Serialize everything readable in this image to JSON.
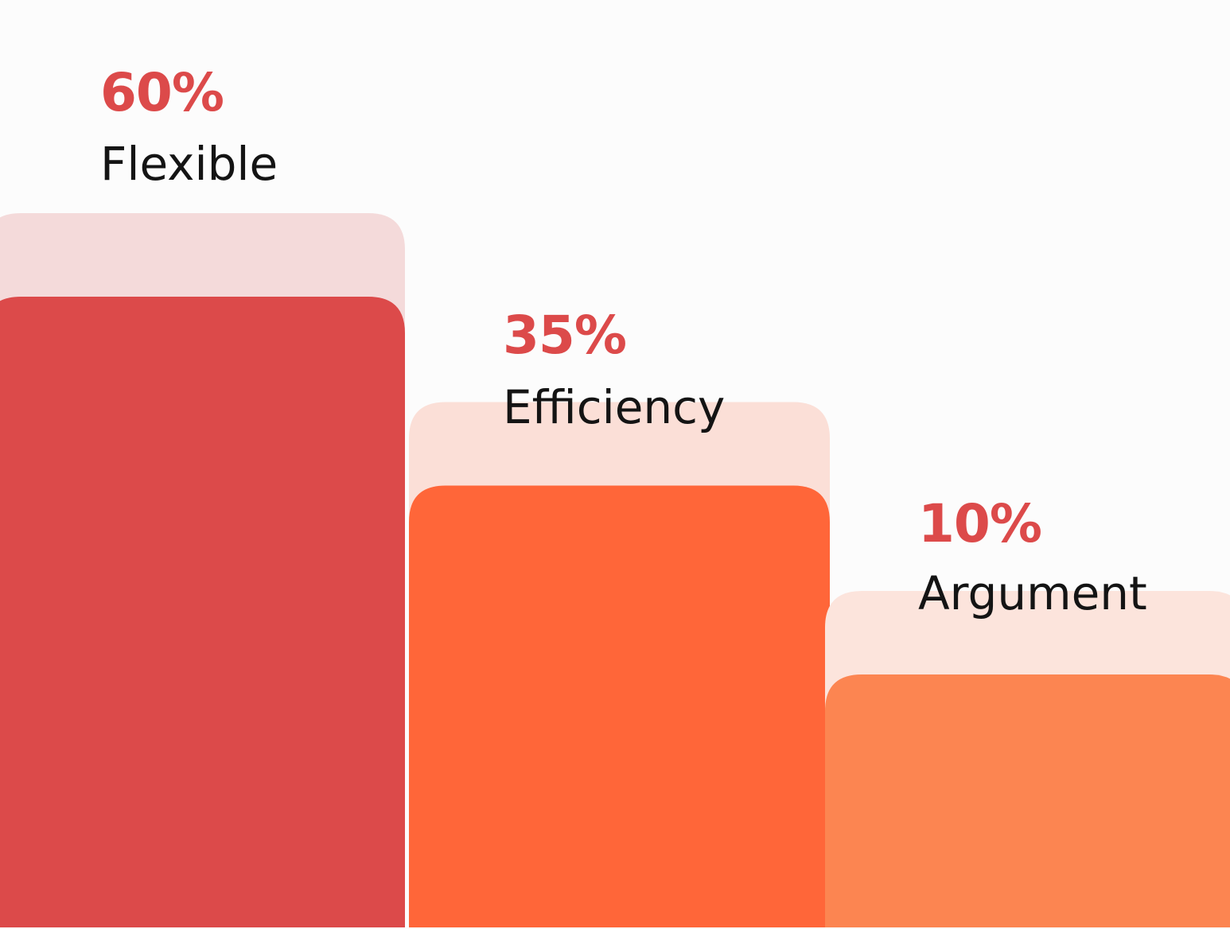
{
  "chart_data": {
    "type": "bar",
    "categories": [
      "Flexible",
      "Efficiency",
      "Argument"
    ],
    "values": [
      60,
      35,
      10
    ],
    "value_labels": [
      "60%",
      "35%",
      "10%"
    ],
    "bar_colors": [
      "#dc4a4a",
      "#ff6639",
      "#fc8551"
    ],
    "back_colors": [
      "#f4dada",
      "#fbdfd7",
      "#fce4dc"
    ],
    "label_color": "#dc4a4a",
    "background": "#fcfcfc"
  }
}
